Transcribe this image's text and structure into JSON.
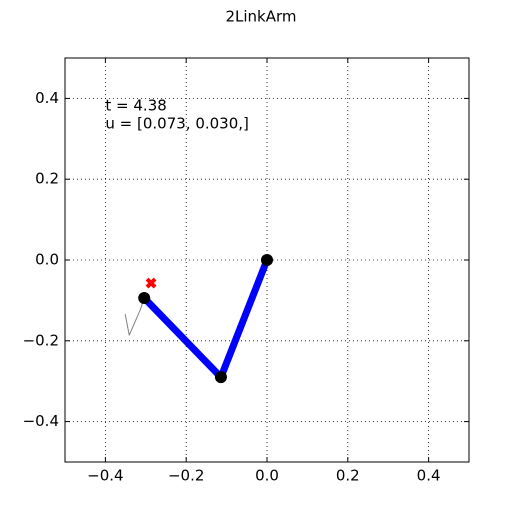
{
  "chart_data": {
    "type": "line",
    "title": "2LinkArm",
    "xlim": [
      -0.5,
      0.5
    ],
    "ylim": [
      -0.5,
      0.5
    ],
    "xticks": [
      {
        "value": -0.4,
        "label": "−0.4"
      },
      {
        "value": -0.2,
        "label": "−0.2"
      },
      {
        "value": 0,
        "label": "0.0"
      },
      0.2,
      0.4
    ],
    "yticks": [
      {
        "value": -0.4,
        "label": "−0.4"
      },
      {
        "value": -0.2,
        "label": "−0.2"
      },
      {
        "value": 0,
        "label": "0.0"
      },
      0.2,
      0.4
    ],
    "grid": true,
    "annotations": [
      "t = 4.38",
      "u = [0.073, 0.030,]"
    ],
    "series": [
      {
        "color": "#808080",
        "width": 1,
        "x": [
          -0.351,
          -0.341,
          -0.314,
          -0.304
        ],
        "values": [
          -0.134,
          -0.186,
          -0.124,
          -0.094
        ]
      },
      {
        "color": "#0000ff",
        "width": 7,
        "marker": "o",
        "marker_color": "#000000",
        "x": [
          0,
          -0.114,
          -0.304
        ],
        "values": [
          0,
          -0.29,
          -0.094
        ]
      },
      {
        "color": "#ff0000",
        "marker": "X",
        "x": [
          -0.287
        ],
        "values": [
          -0.057
        ]
      }
    ]
  }
}
